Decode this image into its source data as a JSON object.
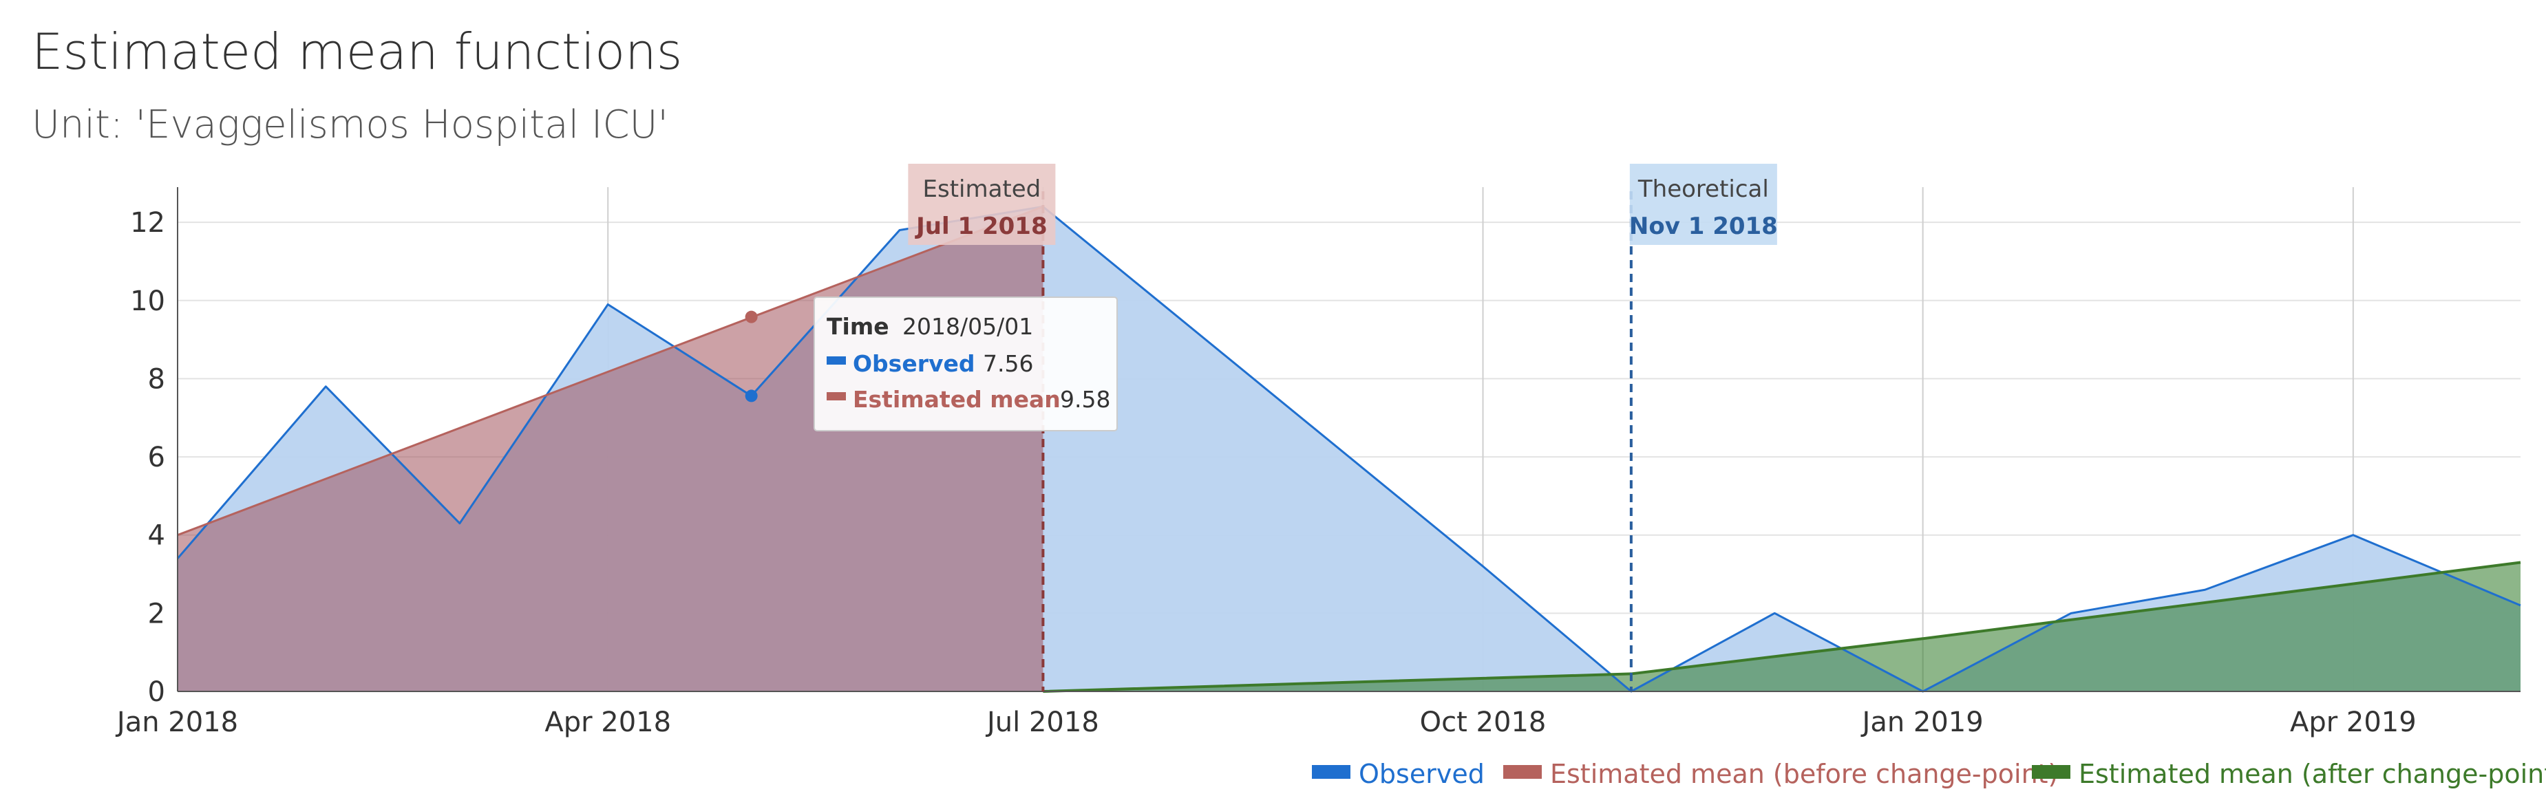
{
  "chart_data": {
    "type": "area",
    "title": "Estimated mean functions",
    "subtitle": "Unit: 'Evaggelismos Hospital ICU'",
    "xlabel": "",
    "ylabel": "",
    "xlim": [
      "2018-01-01",
      "2019-05-06"
    ],
    "ylim": [
      0,
      12.9
    ],
    "grid": true,
    "yticks": [
      0,
      2,
      4,
      6,
      8,
      10,
      12
    ],
    "xticks": [
      {
        "date": "2018-01-01",
        "label": "Jan 2018"
      },
      {
        "date": "2018-04-01",
        "label": "Apr 2018"
      },
      {
        "date": "2018-07-01",
        "label": "Jul 2018"
      },
      {
        "date": "2018-10-01",
        "label": "Oct 2018"
      },
      {
        "date": "2019-01-01",
        "label": "Jan 2019"
      },
      {
        "date": "2019-04-01",
        "label": "Apr 2019"
      }
    ],
    "legend_position": "bottom-right",
    "series": [
      {
        "name": "Observed",
        "color": "#1f6fcf",
        "fill": "#b9d3f0",
        "points": [
          [
            "2018-01-01",
            3.4
          ],
          [
            "2018-02-01",
            7.8
          ],
          [
            "2018-03-01",
            4.3
          ],
          [
            "2018-04-01",
            9.9
          ],
          [
            "2018-05-01",
            7.56
          ],
          [
            "2018-06-01",
            11.8
          ],
          [
            "2018-07-01",
            12.4
          ],
          [
            "2018-10-01",
            3.2
          ],
          [
            "2018-11-01",
            0.0
          ],
          [
            "2018-12-01",
            2.0
          ],
          [
            "2019-01-01",
            0.0
          ],
          [
            "2019-02-01",
            2.0
          ],
          [
            "2019-03-01",
            2.6
          ],
          [
            "2019-04-01",
            4.0
          ],
          [
            "2019-05-06",
            2.2
          ]
        ]
      },
      {
        "name": "Estimated mean (before change-point)",
        "color": "#b5625d",
        "fill": "#a3545c",
        "points": [
          [
            "2018-01-01",
            4.0
          ],
          [
            "2018-07-01",
            12.4
          ]
        ]
      },
      {
        "name": "Estimated mean (after change-point)",
        "color": "#3d7a2a",
        "fill": "#2f7a28",
        "points": [
          [
            "2018-07-01",
            0.0
          ],
          [
            "2018-11-01",
            0.45
          ],
          [
            "2019-01-01",
            1.35
          ],
          [
            "2019-05-06",
            3.3
          ]
        ]
      }
    ],
    "annotations": [
      {
        "label": "Estimated",
        "date_label": "Jul 1 2018",
        "date": "2018-07-01",
        "color": "#8a3a3a",
        "bg": "#e9c9c7"
      },
      {
        "label": "Theoretical",
        "date_label": "Nov 1 2018",
        "date": "2018-11-01",
        "color": "#2a5f9e",
        "bg": "#c3dbf3"
      }
    ],
    "tooltip": {
      "time_label": "Time",
      "time_value": "2018/05/01",
      "rows": [
        {
          "name": "Observed",
          "value": "7.56",
          "color": "#1f6fcf",
          "y": 7.56
        },
        {
          "name": "Estimated mean",
          "value": "9.58",
          "color": "#b5625d",
          "y": 9.58
        }
      ]
    }
  }
}
